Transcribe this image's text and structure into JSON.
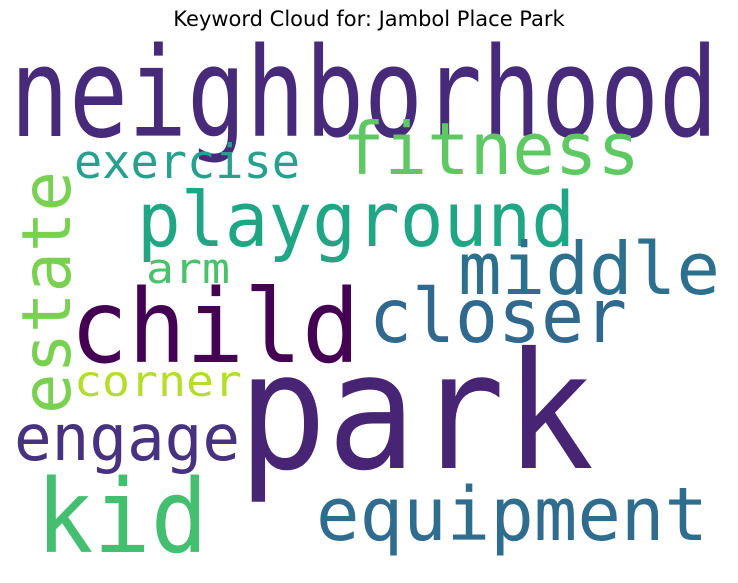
{
  "title": "Keyword Cloud for: Jambol Place Park",
  "words": [
    {
      "text": "neighborhood",
      "color": "#472a7a"
    },
    {
      "text": "fitness",
      "color": "#5ec962"
    },
    {
      "text": "exercise",
      "color": "#25a18e"
    },
    {
      "text": "playground",
      "color": "#21a685"
    },
    {
      "text": "estate",
      "color": "#7ad151"
    },
    {
      "text": "middle",
      "color": "#2d708e"
    },
    {
      "text": "arm",
      "color": "#4ac16d"
    },
    {
      "text": "child",
      "color": "#440154"
    },
    {
      "text": "closer",
      "color": "#31688e"
    },
    {
      "text": "corner",
      "color": "#b5de2b"
    },
    {
      "text": "park",
      "color": "#482475"
    },
    {
      "text": "engage",
      "color": "#46327e"
    },
    {
      "text": "kid",
      "color": "#44bf70"
    },
    {
      "text": "equipment",
      "color": "#2f6c8e"
    }
  ]
}
